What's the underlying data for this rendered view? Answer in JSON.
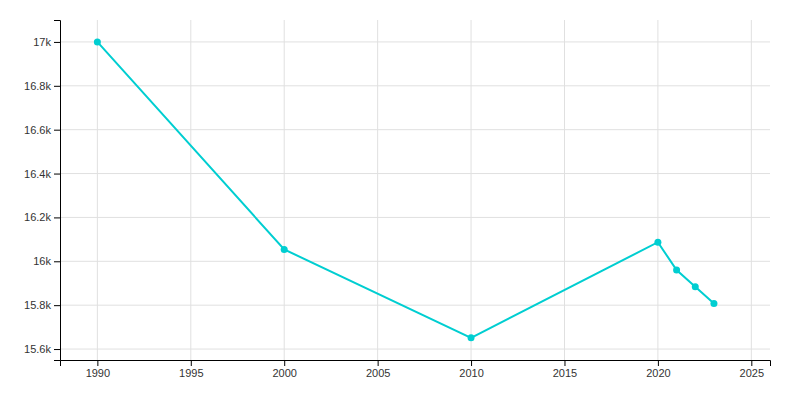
{
  "chart_data": {
    "type": "line",
    "x": [
      1990,
      2000,
      2010,
      2020,
      2021,
      2022,
      2023
    ],
    "values": [
      17000,
      16054,
      15651,
      16087,
      15960,
      15884,
      15808
    ],
    "color": "#00CED1",
    "marker": "circle",
    "xlim": [
      1988,
      2026
    ],
    "ylim": [
      15550,
      17100
    ],
    "xticks": [
      1990,
      1995,
      2000,
      2005,
      2010,
      2015,
      2020,
      2025
    ],
    "yticks": [
      {
        "value": 15600,
        "label": "15.6k"
      },
      {
        "value": 15800,
        "label": "15.8k"
      },
      {
        "value": 16000,
        "label": "16k"
      },
      {
        "value": 16200,
        "label": "16.2k"
      },
      {
        "value": 16400,
        "label": "16.4k"
      },
      {
        "value": 16600,
        "label": "16.6k"
      },
      {
        "value": 16800,
        "label": "16.8k"
      },
      {
        "value": 17000,
        "label": "17k"
      }
    ],
    "grid": true
  }
}
